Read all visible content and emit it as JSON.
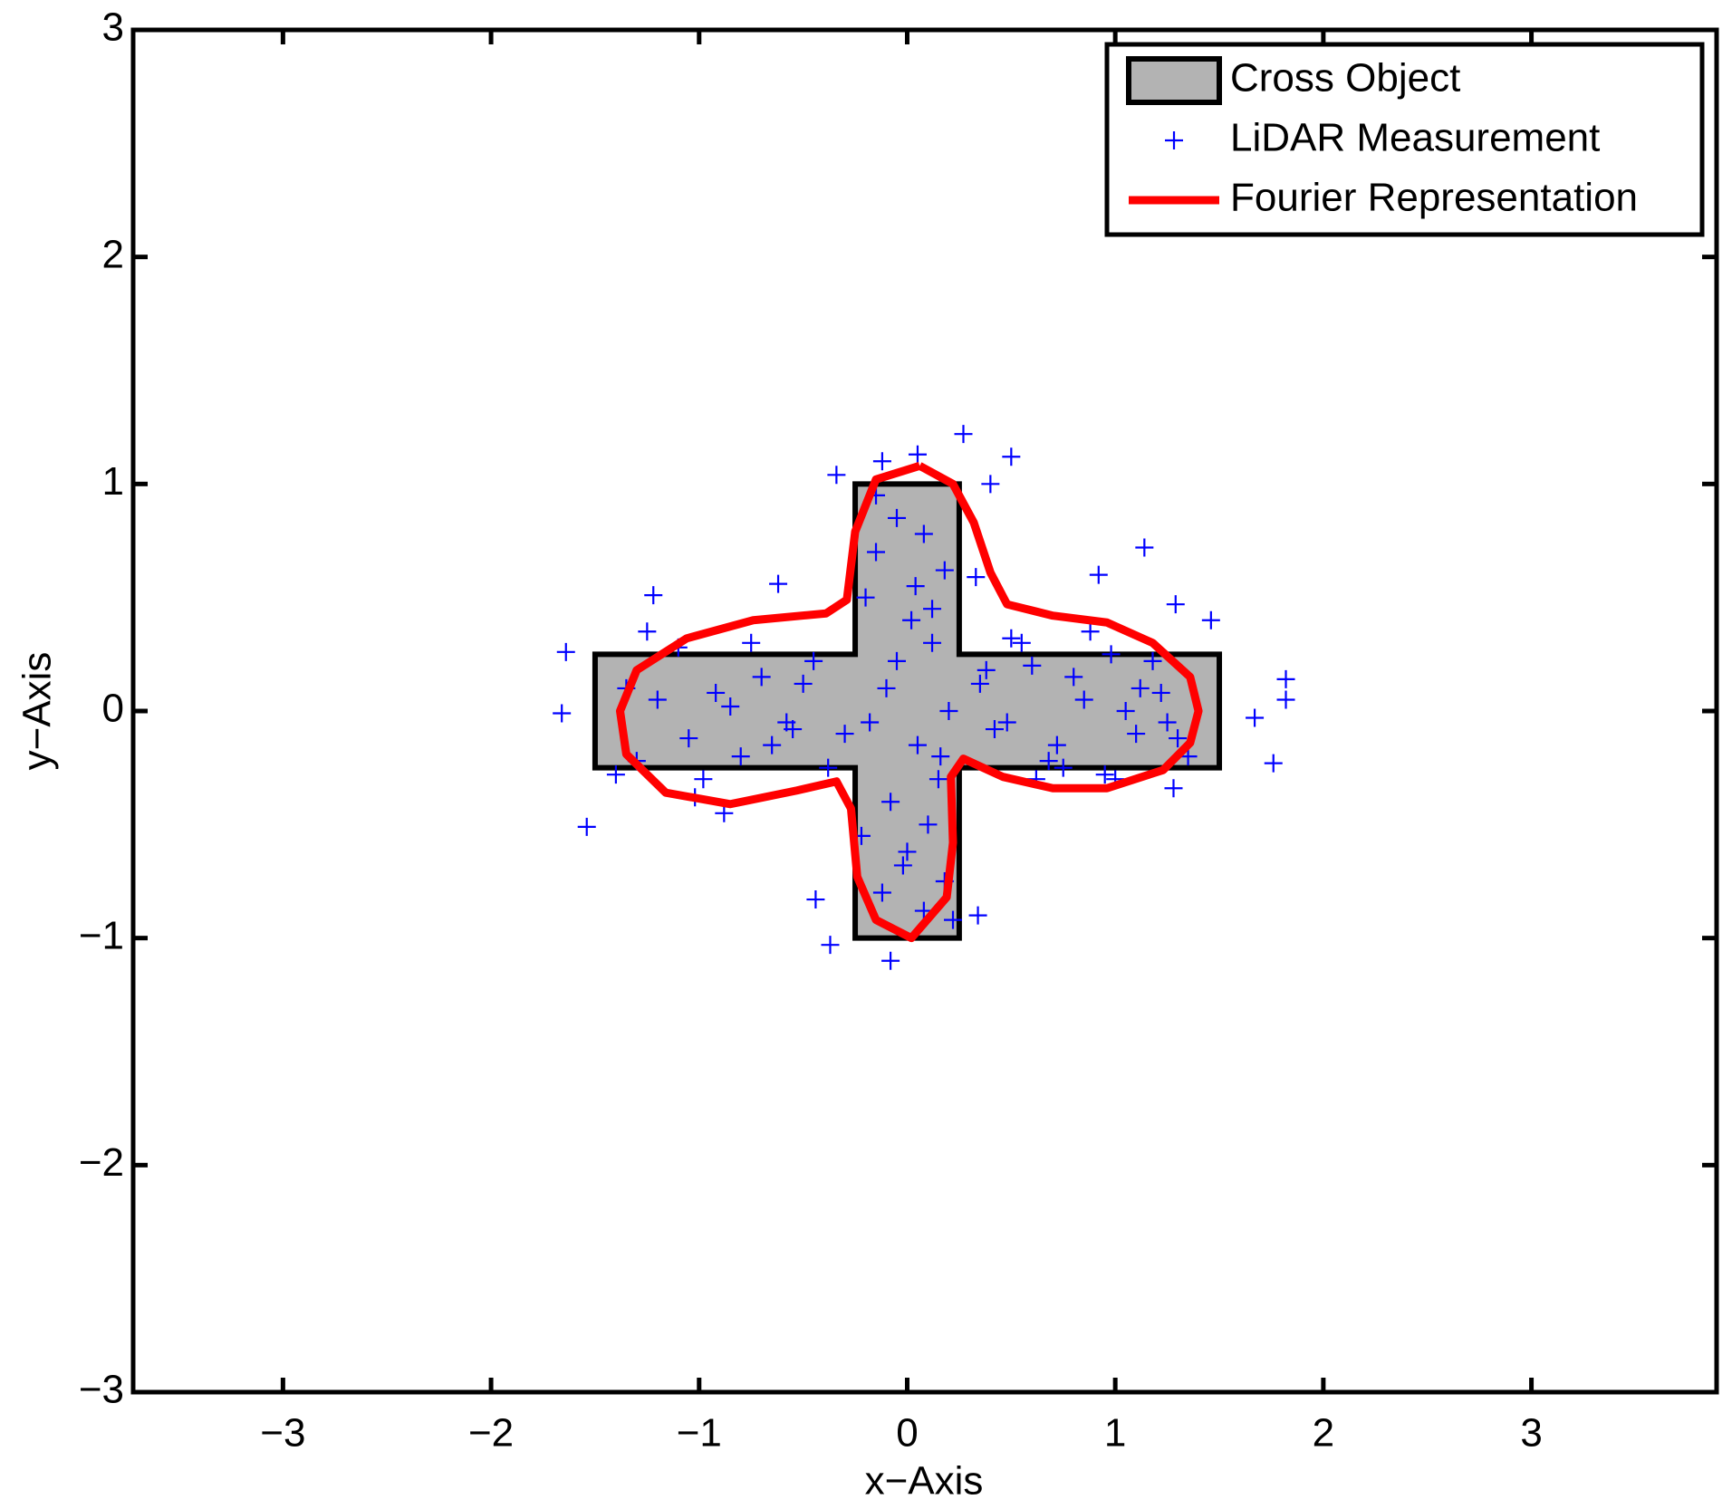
{
  "chart_data": {
    "type": "scatter",
    "xlabel": "x−Axis",
    "ylabel": "y−Axis",
    "xlim": [
      -3.72,
      3.89
    ],
    "ylim": [
      -3,
      3
    ],
    "xticks": [
      {
        "value": -3,
        "label": "−3"
      },
      {
        "value": -2,
        "label": "−2"
      },
      {
        "value": -1,
        "label": "−1"
      },
      0,
      1,
      2,
      3
    ],
    "yticks": [
      {
        "value": -3,
        "label": "−3"
      },
      {
        "value": -2,
        "label": "−2"
      },
      {
        "value": -1,
        "label": "−1"
      },
      0,
      1,
      2,
      3
    ],
    "legend": "upper right",
    "series": [
      {
        "name": "Cross Object",
        "type": "polygon",
        "color": "#b3b3b3",
        "x": [
          -1.5,
          -0.25,
          -0.25,
          0.25,
          0.25,
          1.5,
          1.5,
          0.25,
          0.25,
          -0.25,
          -0.25,
          -1.5
        ],
        "y": [
          0.25,
          0.25,
          1,
          1,
          0.25,
          0.25,
          -0.25,
          -0.25,
          -1,
          -1,
          -0.25,
          -0.25
        ]
      },
      {
        "name": "LiDAR Measurement",
        "type": "scatter",
        "color": "#0000ff",
        "x": [
          0.27,
          0.5,
          1.14,
          1.82,
          1.82,
          1.76,
          1.67,
          -1.54,
          -1.64,
          -1.66,
          -0.08,
          -0.37,
          -0.44,
          0.34,
          0.92,
          1.29,
          1.46,
          1.28,
          -1.22,
          -0.62,
          -0.34,
          -0.12,
          0.05,
          0.4,
          0.33,
          -1.35,
          -1.2,
          -1.05,
          -0.92,
          -0.8,
          -0.7,
          -0.58,
          -0.45,
          -0.3,
          -1.3,
          -1.1,
          -0.98,
          -0.85,
          -0.65,
          -0.5,
          -0.38,
          -1.25,
          -1.02,
          -0.75,
          -0.55,
          -1.4,
          -0.88,
          0.35,
          0.48,
          0.6,
          0.72,
          0.85,
          0.98,
          1.1,
          1.22,
          1.35,
          0.42,
          0.55,
          0.68,
          0.8,
          0.95,
          1.05,
          1.18,
          1.3,
          0.38,
          0.62,
          0.88,
          1.12,
          1.25,
          0.5,
          0.75,
          1.0,
          -0.15,
          -0.05,
          0.08,
          0.18,
          -0.2,
          0.02,
          0.12,
          -0.1,
          0.2,
          -0.18,
          0.05,
          0.15,
          -0.08,
          0.1,
          -0.22,
          0.0,
          0.18,
          -0.12,
          0.08,
          0.22,
          -0.15,
          0.04,
          -0.05,
          0.16,
          -0.02,
          0.12
        ],
        "y": [
          1.22,
          1.12,
          0.72,
          0.05,
          0.14,
          -0.23,
          -0.03,
          -0.51,
          0.26,
          -0.01,
          -1.1,
          -1.03,
          -0.83,
          -0.9,
          0.6,
          0.47,
          0.4,
          -0.34,
          0.51,
          0.56,
          1.04,
          1.1,
          1.13,
          1.0,
          0.59,
          0.1,
          0.05,
          -0.12,
          0.08,
          -0.2,
          0.15,
          -0.05,
          0.22,
          -0.1,
          -0.22,
          0.28,
          -0.3,
          0.02,
          -0.15,
          0.12,
          -0.25,
          0.35,
          -0.38,
          0.3,
          -0.08,
          -0.28,
          -0.45,
          0.12,
          -0.05,
          0.2,
          -0.15,
          0.05,
          0.25,
          -0.1,
          0.08,
          -0.2,
          -0.08,
          0.3,
          -0.22,
          0.15,
          -0.28,
          0.0,
          0.22,
          -0.12,
          0.18,
          -0.3,
          0.35,
          0.1,
          -0.05,
          0.32,
          -0.25,
          -0.3,
          0.95,
          0.85,
          0.78,
          0.62,
          0.5,
          0.4,
          0.3,
          0.1,
          0.0,
          -0.05,
          -0.15,
          -0.3,
          -0.4,
          -0.5,
          -0.55,
          -0.62,
          -0.75,
          -0.8,
          -0.88,
          -0.92,
          0.7,
          0.55,
          0.22,
          -0.2,
          -0.68,
          0.45
        ]
      },
      {
        "name": "Fourier Representation",
        "type": "line",
        "color": "#ff0000",
        "x": [
          0.06,
          0.22,
          0.32,
          0.4,
          0.48,
          0.7,
          0.96,
          1.18,
          1.36,
          1.4,
          1.36,
          1.23,
          0.96,
          0.7,
          0.46,
          0.27,
          0.21,
          0.22,
          0.19,
          0.02,
          -0.15,
          -0.24,
          -0.27,
          -0.34,
          -0.53,
          -0.85,
          -1.16,
          -1.35,
          -1.38,
          -1.3,
          -1.06,
          -0.74,
          -0.39,
          -0.29,
          -0.25,
          -0.15,
          0.06
        ],
        "y": [
          1.08,
          1.0,
          0.83,
          0.61,
          0.47,
          0.42,
          0.39,
          0.3,
          0.15,
          0.0,
          -0.14,
          -0.26,
          -0.34,
          -0.34,
          -0.29,
          -0.21,
          -0.29,
          -0.58,
          -0.82,
          -1.0,
          -0.92,
          -0.73,
          -0.43,
          -0.31,
          -0.35,
          -0.41,
          -0.36,
          -0.19,
          0.0,
          0.18,
          0.32,
          0.4,
          0.43,
          0.49,
          0.79,
          1.02,
          1.08
        ]
      }
    ]
  }
}
